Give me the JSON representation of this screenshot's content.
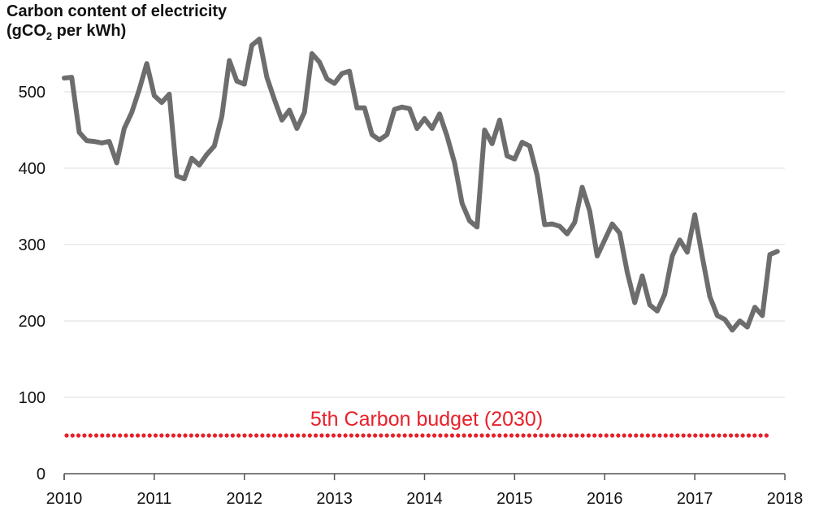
{
  "chart_data": {
    "type": "line",
    "title_line1": "Carbon content of electricity",
    "title_line2_prefix": "(gCO",
    "title_line2_sub": "2",
    "title_line2_suffix": " per kWh)",
    "xlabel": "",
    "ylabel": "",
    "xlim": [
      2010,
      2018
    ],
    "ylim": [
      0,
      560
    ],
    "x_ticks": [
      "2010",
      "2011",
      "2012",
      "2013",
      "2014",
      "2015",
      "2016",
      "2017",
      "2018"
    ],
    "y_ticks": [
      "0",
      "100",
      "200",
      "300",
      "400",
      "500"
    ],
    "grid": "horizontal",
    "line_color": "#6d6d6d",
    "series": [
      {
        "start": "2010-01",
        "frequency": "monthly",
        "values": [
          518,
          519,
          447,
          436,
          435,
          433,
          435,
          407,
          452,
          473,
          503,
          537,
          495,
          486,
          497,
          390,
          386,
          413,
          404,
          418,
          429,
          468,
          541,
          514,
          510,
          561,
          569,
          519,
          490,
          463,
          476,
          452,
          473,
          550,
          539,
          517,
          511,
          524,
          527,
          479,
          479,
          444,
          437,
          444,
          477,
          480,
          478,
          452,
          465,
          452,
          471,
          442,
          407,
          354,
          331,
          323,
          450,
          432,
          463,
          416,
          412,
          434,
          429,
          391,
          326,
          327,
          324,
          314,
          329,
          375,
          344,
          285,
          306,
          327,
          315,
          264,
          224,
          259,
          221,
          213,
          235,
          285,
          306,
          290,
          339,
          284,
          232,
          207,
          202,
          188,
          200,
          192,
          218,
          207,
          287,
          291
        ]
      }
    ],
    "reference_line": {
      "value": 50,
      "label": "5th Carbon budget (2030)",
      "color": "#e8202a",
      "style": "dotted"
    }
  }
}
